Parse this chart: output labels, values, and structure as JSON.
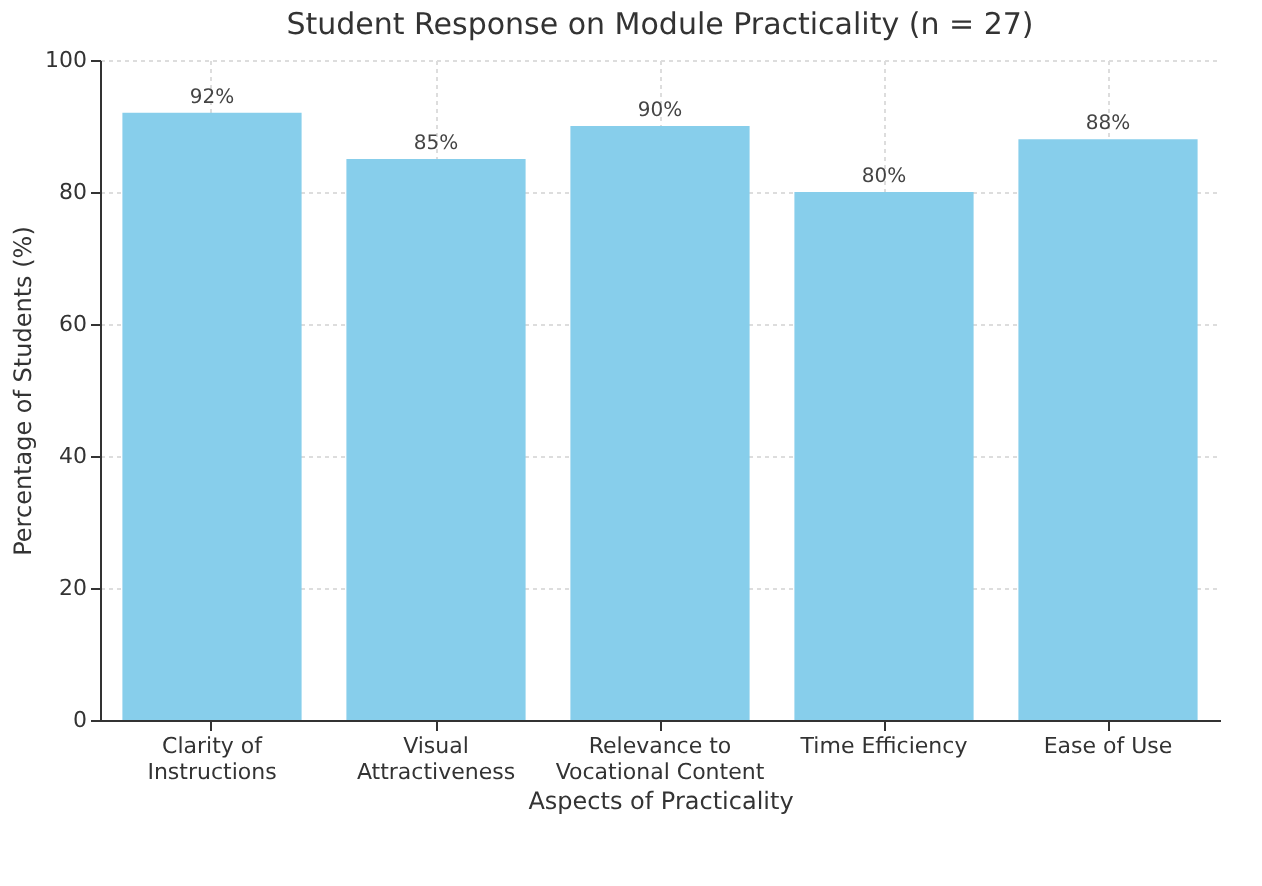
{
  "chart_data": {
    "type": "bar",
    "title": "Student Response on Module Practicality (n = 27)",
    "xlabel": "Aspects of Practicality",
    "ylabel": "Percentage of Students (%)",
    "categories": [
      "Clarity of Instructions",
      "Visual Attractiveness",
      "Relevance to Vocational Content",
      "Time Efficiency",
      "Ease of Use"
    ],
    "values": [
      92,
      85,
      90,
      80,
      88
    ],
    "value_labels": [
      "92%",
      "85%",
      "90%",
      "80%",
      "88%"
    ],
    "color": "#87ceeb",
    "ylim": [
      0,
      100
    ],
    "yticks": [
      0,
      20,
      40,
      60,
      80,
      100
    ],
    "grid": true
  }
}
